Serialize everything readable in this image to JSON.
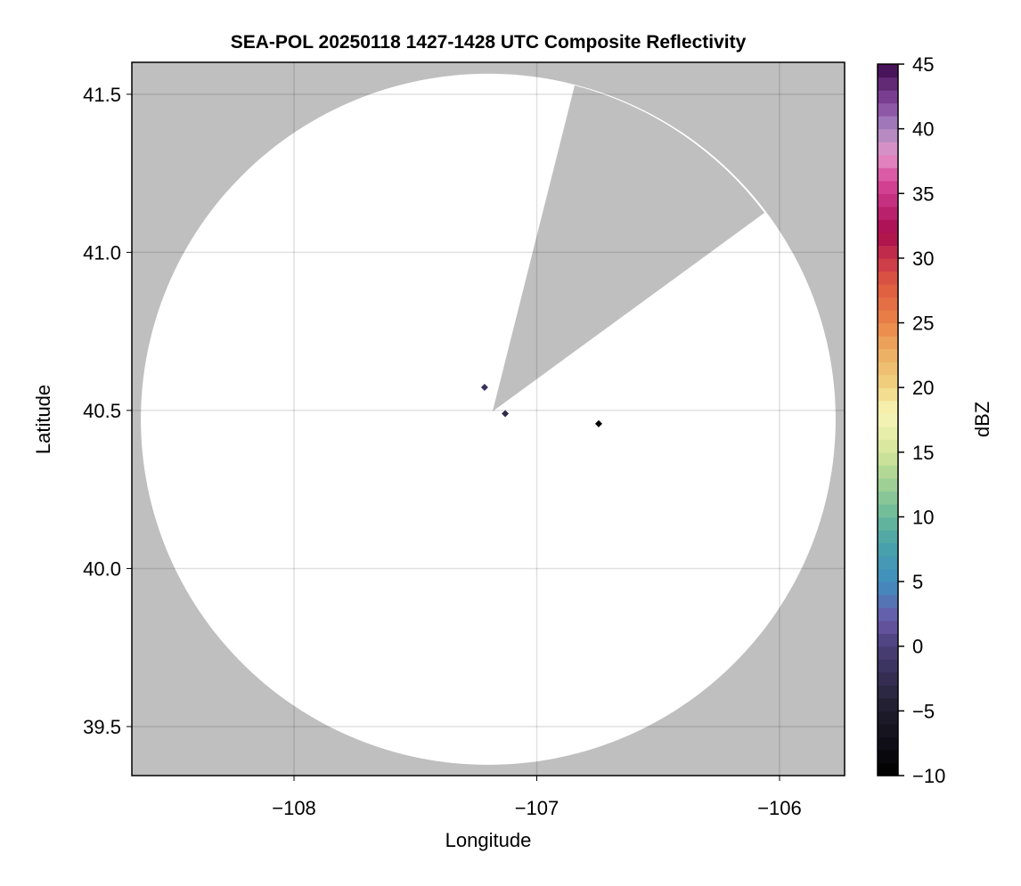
{
  "chart_data": {
    "type": "heatmap",
    "title": "SEA-POL 20250118 1427-1428 UTC Composite Reflectivity",
    "xlabel": "Longitude",
    "ylabel": "Latitude",
    "xlim": [
      -108.668,
      -105.732
    ],
    "ylim": [
      39.345,
      41.601
    ],
    "xticks": [
      -108,
      -107,
      -106
    ],
    "xtick_labels": [
      "−108",
      "−107",
      "−106"
    ],
    "yticks": [
      39.5,
      40.0,
      40.5,
      41.0,
      41.5
    ],
    "ytick_labels": [
      "39.5",
      "40.0",
      "40.5",
      "41.0",
      "41.5"
    ],
    "grid": true,
    "background_color": "#bfbfbf",
    "coverage": {
      "center": [
        -107.2,
        40.472
      ],
      "radius_lon": 1.431,
      "radius_lat": 1.093,
      "fill_color": "#ffffff",
      "blocked_sector": {
        "apex": [
          -107.182,
          40.497
        ],
        "edge_start": [
          -106.844,
          41.528
        ],
        "edge_end": [
          -106.062,
          41.125
        ]
      }
    },
    "echoes": [
      {
        "lon": -107.215,
        "lat": 40.573,
        "dbz": -2
      },
      {
        "lon": -107.13,
        "lat": 40.49,
        "dbz": -3
      },
      {
        "lon": -106.745,
        "lat": 40.458,
        "dbz": -10
      }
    ],
    "colorbar": {
      "label": "dBZ",
      "range": [
        -10,
        45
      ],
      "step": 1,
      "ticks": [
        -10,
        -5,
        0,
        5,
        10,
        15,
        20,
        25,
        30,
        35,
        40,
        45
      ],
      "tick_labels": [
        "−10",
        "−5",
        "0",
        "5",
        "10",
        "15",
        "20",
        "25",
        "30",
        "35",
        "40",
        "45"
      ],
      "anchors": [
        [
          -10,
          "#000000"
        ],
        [
          -5,
          "#1f1c2c"
        ],
        [
          0,
          "#4a3f78"
        ],
        [
          2,
          "#6a58a8"
        ],
        [
          5,
          "#3f8fbf"
        ],
        [
          8,
          "#4aa3a8"
        ],
        [
          10,
          "#6ab89a"
        ],
        [
          13,
          "#a8d494"
        ],
        [
          15,
          "#d4e59a"
        ],
        [
          18,
          "#f8f6b8"
        ],
        [
          20,
          "#f0d482"
        ],
        [
          23,
          "#ecaa60"
        ],
        [
          25,
          "#ea8448"
        ],
        [
          28,
          "#de5a40"
        ],
        [
          30,
          "#c8344a"
        ],
        [
          32,
          "#a80a4c"
        ],
        [
          34,
          "#c02878"
        ],
        [
          36,
          "#d8489a"
        ],
        [
          38,
          "#e494c8"
        ],
        [
          40,
          "#a886c0"
        ],
        [
          42,
          "#86489e"
        ],
        [
          45,
          "#3e0a4c"
        ]
      ]
    }
  }
}
